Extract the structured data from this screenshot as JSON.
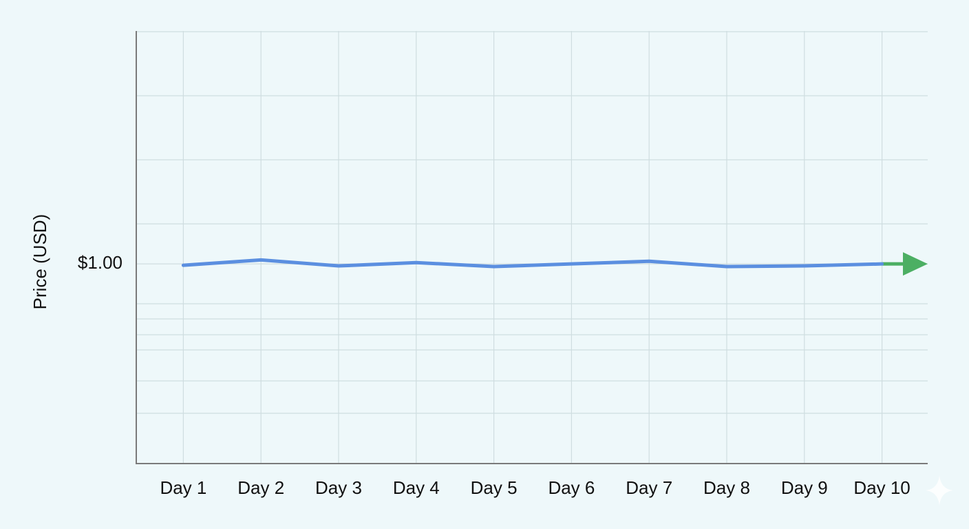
{
  "chart_data": {
    "type": "line",
    "y_label": "Price (USD)",
    "categories": [
      "Day 1",
      "Day 2",
      "Day 3",
      "Day 4",
      "Day 5",
      "Day 6",
      "Day 7",
      "Day 8",
      "Day 9",
      "Day 10"
    ],
    "values": [
      0.9996,
      1.0012,
      0.9994,
      1.0004,
      0.9992,
      1.0,
      1.0008,
      0.9992,
      0.9994,
      1.0
    ],
    "color": "#5b8fe0",
    "ylim": [
      0.94,
      1.07
    ],
    "yticks": [
      {
        "value": 1,
        "label": "$1.00"
      }
    ],
    "grid": true
  }
}
